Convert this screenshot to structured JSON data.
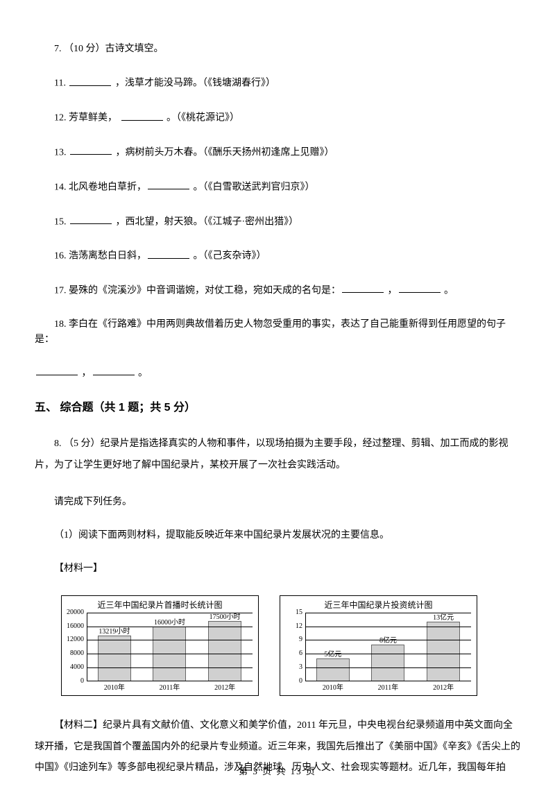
{
  "q7": "7. （10 分）古诗文填空。",
  "items": {
    "11": {
      "pre": "11. ",
      "mid": " ，浅草才能没马蹄。（《钱塘湖春行》）"
    },
    "12": {
      "pre": "12. 芳草鲜美， ",
      "mid": " 。（《桃花源记》）"
    },
    "13": {
      "pre": "13.  ",
      "mid": " ，病树前头万木春。（《酬乐天扬州初逢席上见赠》）"
    },
    "14": {
      "pre": "14. 北风卷地白草折，",
      "mid": " 。（《白雪歌送武判官归京》）"
    },
    "15": {
      "pre": "15. ",
      "mid": " ，西北望，射天狼。（《江城子·密州出猎》）"
    },
    "16": {
      "pre": "16. 浩荡离愁白日斜，",
      "mid": " 。（《己亥杂诗》）"
    },
    "17": {
      "pre": "17. 晏殊的《浣溪沙》中音调谐婉，对仗工稳，宛如天成的名句是：",
      "mid": " ，",
      "end": " 。"
    },
    "18a": "18. 李白在《行路难》中用两则典故借着历史人物忽受重用的事实，表达了自己能重新得到任用愿望的句子是：",
    "18b_mid": " ，",
    "18b_end": " 。"
  },
  "section5": "五、 综合题（共 1 题；共 5 分）",
  "q8a": "8.  （5 分）纪录片是指选择真实的人物和事件，以现场拍摄为主要手段，经过整理、剪辑、加工而成的影视片，为了让学生更好地了解中国纪录片，某校开展了一次社会实践活动。",
  "q8b": "请完成下列任务。",
  "q8c": "（1）阅读下面两则材料，提取能反映近年来中国纪录片发展状况的主要信息。",
  "mat1_label": "【材料一】",
  "chart1": {
    "type": "bar",
    "title": "近三年中国纪录片首播时长统计图",
    "categories": [
      "2010年",
      "2011年",
      "2012年"
    ],
    "values": [
      13219,
      16000,
      17500
    ],
    "bar_labels": [
      "13219小时",
      "16000小时",
      "17500小时"
    ],
    "ylim": [
      0,
      20000
    ],
    "yticks": [
      0,
      4000,
      8000,
      12000,
      16000,
      20000
    ],
    "bar_color": "#d0d0d0",
    "grid_color": "#000000",
    "background_color": "#ffffff",
    "title_fontsize": 12,
    "label_fontsize": 10
  },
  "chart2": {
    "type": "bar",
    "title": "近三年中国纪录片投资统计图",
    "categories": [
      "2010年",
      "2011年",
      "2012年"
    ],
    "values": [
      5,
      8,
      13
    ],
    "bar_labels": [
      "5亿元",
      "8亿元",
      "13亿元"
    ],
    "ylim": [
      0,
      15
    ],
    "yticks": [
      0,
      3,
      6,
      9,
      12,
      15
    ],
    "bar_color": "#d0d0d0",
    "grid_color": "#000000",
    "background_color": "#ffffff",
    "title_fontsize": 12,
    "label_fontsize": 10
  },
  "mat2": "【材料二】纪录片具有文献价值、文化意义和美学价值，2011 年元旦，中央电视台纪录频道用中英文面向全球开播，它是我国首个覆盖国内外的纪录片专业频道。近三年来，我国先后推出了《美丽中国》《辛亥》《舌尖上的中国》《归途列车》等多部电视纪录片精品，涉及自然地球、历史人文、社会现实等题材。近几年，我国每年拍",
  "footer": "第 3 页 共 13 页"
}
